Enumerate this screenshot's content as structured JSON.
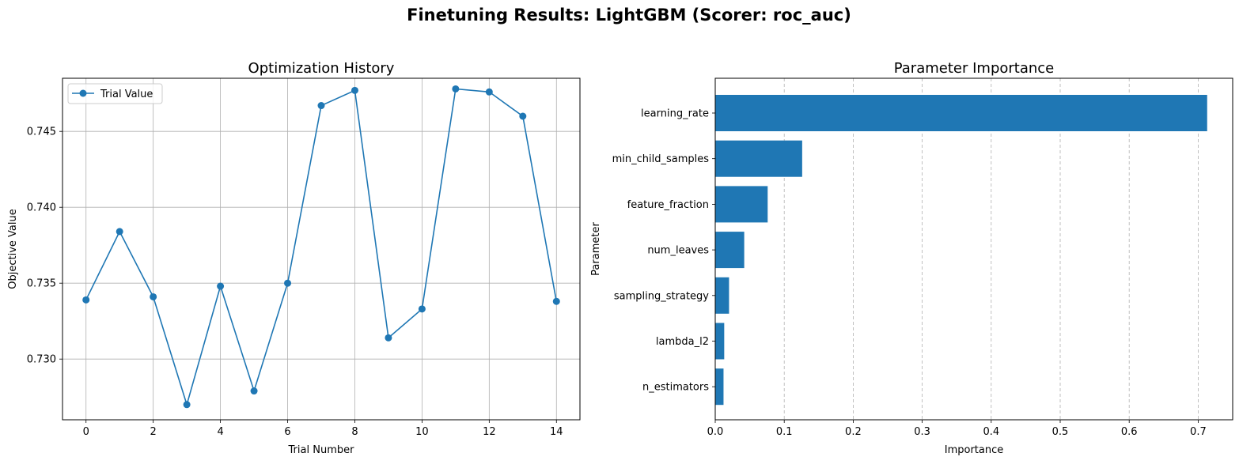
{
  "figure": {
    "title": "Finetuning Results: LightGBM (Scorer: roc_auc)"
  },
  "chart_data": [
    {
      "type": "line",
      "title": "Optimization History",
      "xlabel": "Trial Number",
      "ylabel": "Objective Value",
      "xlim": [
        -0.7,
        14.7
      ],
      "ylim": [
        0.726,
        0.7485
      ],
      "xticks": [
        0,
        2,
        4,
        6,
        8,
        10,
        12,
        14
      ],
      "yticks": [
        0.73,
        0.735,
        0.74,
        0.745
      ],
      "ytick_labels": [
        "0.730",
        "0.735",
        "0.740",
        "0.745"
      ],
      "grid": true,
      "legend": "upper-left",
      "series": [
        {
          "name": "Trial Value",
          "color": "#1f77b4",
          "marker": "circle",
          "x": [
            0,
            1,
            2,
            3,
            4,
            5,
            6,
            7,
            8,
            9,
            10,
            11,
            12,
            13,
            14
          ],
          "y": [
            0.7339,
            0.7384,
            0.7341,
            0.727,
            0.7348,
            0.7279,
            0.735,
            0.7467,
            0.7477,
            0.7314,
            0.7333,
            0.7478,
            0.7476,
            0.746,
            0.7338
          ]
        }
      ]
    },
    {
      "type": "bar",
      "orientation": "horizontal",
      "title": "Parameter Importance",
      "xlabel": "Importance",
      "ylabel": "Parameter",
      "xlim": [
        0,
        0.75
      ],
      "xticks": [
        0.0,
        0.1,
        0.2,
        0.3,
        0.4,
        0.5,
        0.6,
        0.7
      ],
      "xtick_labels": [
        "0.0",
        "0.1",
        "0.2",
        "0.3",
        "0.4",
        "0.5",
        "0.6",
        "0.7"
      ],
      "grid": "x-dashed",
      "color": "#1f77b4",
      "categories": [
        "learning_rate",
        "min_child_samples",
        "feature_fraction",
        "num_leaves",
        "sampling_strategy",
        "lambda_l2",
        "n_estimators"
      ],
      "values": [
        0.713,
        0.126,
        0.076,
        0.042,
        0.02,
        0.013,
        0.012
      ]
    }
  ]
}
